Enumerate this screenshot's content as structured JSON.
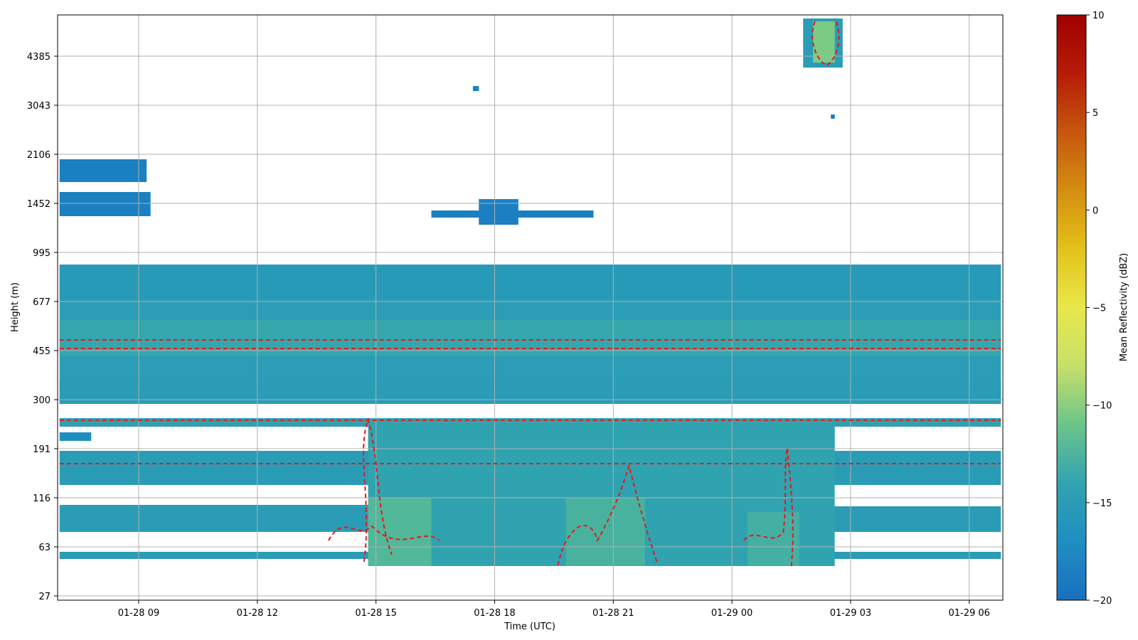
{
  "chart_data": {
    "type": "heatmap",
    "title": "",
    "xlabel": "Time (UTC)",
    "ylabel": "Height (m)",
    "x_ticks": [
      "01-28 09",
      "01-28 12",
      "01-28 15",
      "01-28 18",
      "01-28 21",
      "01-29 00",
      "01-29 03",
      "01-29 06"
    ],
    "x_tick_hours": [
      9,
      12,
      15,
      18,
      21,
      24,
      27,
      30
    ],
    "x_range_hours": [
      6.95,
      30.85
    ],
    "y_ticks": [
      "27",
      "63",
      "116",
      "191",
      "300",
      "455",
      "677",
      "995",
      "1452",
      "2106",
      "3043",
      "4385"
    ],
    "grid": true,
    "colorbar": {
      "label": "Mean Reflectivity (dBZ)",
      "min": -20,
      "max": 10,
      "ticks": [
        "10",
        "5",
        "0",
        "−5",
        "−10",
        "−15",
        "−20"
      ],
      "tick_values": [
        10,
        5,
        0,
        -5,
        -10,
        -15,
        -20
      ],
      "colormap": [
        "#1a6fc0",
        "#1f8ec0",
        "#32a3b1",
        "#6cc48a",
        "#c6e06a",
        "#e8e84a",
        "#e3c11a",
        "#d48e10",
        "#c6560e",
        "#b51c07",
        "#a00000"
      ]
    },
    "contour_color": "#e41a1c",
    "contour_style": "dashed",
    "echo_regions": [
      {
        "name": "near-surface layer",
        "height": "63 - 300",
        "hours": [
          7.0,
          30.8
        ],
        "dbz": -16
      },
      {
        "name": "main layer",
        "height": "300 - 995",
        "hours": [
          7.0,
          30.8
        ],
        "dbz": -16
      },
      {
        "name": "cloud near 2000 m",
        "height": "1452 - 2106",
        "hours": [
          7.0,
          9.2
        ],
        "dbz": -18
      },
      {
        "name": "cloud near 1450 m",
        "height": "1300 - 1600",
        "hours": [
          16.5,
          20.5
        ],
        "dbz": -18
      },
      {
        "name": "cloud above 4385 m",
        "height": "3700 - 5000",
        "hours": [
          25.8,
          26.8
        ],
        "dbz": -12
      }
    ]
  }
}
